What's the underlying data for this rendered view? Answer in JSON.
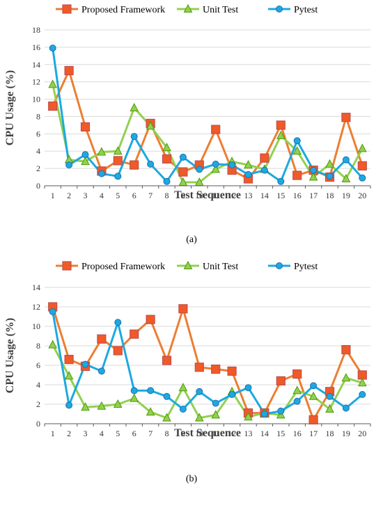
{
  "colors": {
    "proposed": "#ED7D31",
    "proposed_marker_fill": "#F05A28",
    "unit": "#92D050",
    "unit_marker_fill": "#92D050",
    "pytest": "#1CA9E0",
    "pytest_marker_fill": "#1CA9E0",
    "grid": "#D9D9D9",
    "axis": "#595959"
  },
  "chart_data": [
    {
      "type": "line",
      "panel_label": "(a)",
      "ylabel": "CPU Usage (%)",
      "xlabel": "Test Sequence",
      "ylim": [
        0,
        18
      ],
      "yticks": [
        0,
        2,
        4,
        6,
        8,
        10,
        12,
        14,
        16,
        18
      ],
      "grid": true,
      "legend_position": "top",
      "categories": [
        "1",
        "2",
        "3",
        "4",
        "5",
        "6",
        "7",
        "8",
        "9",
        "10",
        "11",
        "12",
        "13",
        "14",
        "15",
        "16",
        "17",
        "18",
        "19",
        "20"
      ],
      "series": [
        {
          "name": "Proposed Framework",
          "marker": "square",
          "color_key": "proposed",
          "values": [
            9.2,
            13.3,
            6.8,
            1.7,
            2.9,
            2.4,
            7.2,
            3.1,
            1.6,
            2.4,
            6.5,
            1.8,
            0.8,
            3.2,
            7.0,
            1.2,
            1.8,
            1.0,
            7.9,
            2.3
          ]
        },
        {
          "name": "Unit Test",
          "marker": "triangle",
          "color_key": "unit",
          "values": [
            11.7,
            3.0,
            2.8,
            3.9,
            4.0,
            9.0,
            6.9,
            4.4,
            0.4,
            0.4,
            1.9,
            2.8,
            2.4,
            1.9,
            5.8,
            4.0,
            1.0,
            2.5,
            0.8,
            4.3
          ]
        },
        {
          "name": "Pytest",
          "marker": "circle",
          "color_key": "pytest",
          "values": [
            15.9,
            2.4,
            3.6,
            1.4,
            1.1,
            5.7,
            2.5,
            0.5,
            3.3,
            1.9,
            2.5,
            2.4,
            1.3,
            1.8,
            0.5,
            5.2,
            1.8,
            1.1,
            3.0,
            0.9
          ]
        }
      ]
    },
    {
      "type": "line",
      "panel_label": "(b)",
      "ylabel": "CPU Usage (%)",
      "xlabel": "Test Sequence",
      "ylim": [
        0,
        14
      ],
      "yticks": [
        0,
        2,
        4,
        6,
        8,
        10,
        12,
        14
      ],
      "grid": true,
      "legend_position": "top",
      "categories": [
        "1",
        "2",
        "3",
        "4",
        "5",
        "6",
        "7",
        "8",
        "9",
        "10",
        "11",
        "12",
        "13",
        "14",
        "15",
        "16",
        "17",
        "18",
        "19",
        "20"
      ],
      "series": [
        {
          "name": "Proposed Framework",
          "marker": "square",
          "color_key": "proposed",
          "values": [
            12.0,
            6.6,
            5.9,
            8.7,
            7.5,
            9.2,
            10.7,
            6.5,
            11.8,
            5.8,
            5.6,
            5.4,
            1.1,
            1.1,
            4.4,
            5.1,
            0.4,
            3.3,
            7.6,
            5.0
          ]
        },
        {
          "name": "Unit Test",
          "marker": "triangle",
          "color_key": "unit",
          "values": [
            8.1,
            4.9,
            1.7,
            1.8,
            2.0,
            2.6,
            1.2,
            0.6,
            3.7,
            0.6,
            0.9,
            3.3,
            0.7,
            1.1,
            0.9,
            3.4,
            2.8,
            1.5,
            4.7,
            4.2
          ]
        },
        {
          "name": "Pytest",
          "marker": "circle",
          "color_key": "pytest",
          "values": [
            11.5,
            1.9,
            6.1,
            5.4,
            10.4,
            3.4,
            3.4,
            2.8,
            1.5,
            3.3,
            2.1,
            3.0,
            3.7,
            1.0,
            1.3,
            2.3,
            3.9,
            2.8,
            1.6,
            3.0
          ]
        }
      ]
    }
  ]
}
